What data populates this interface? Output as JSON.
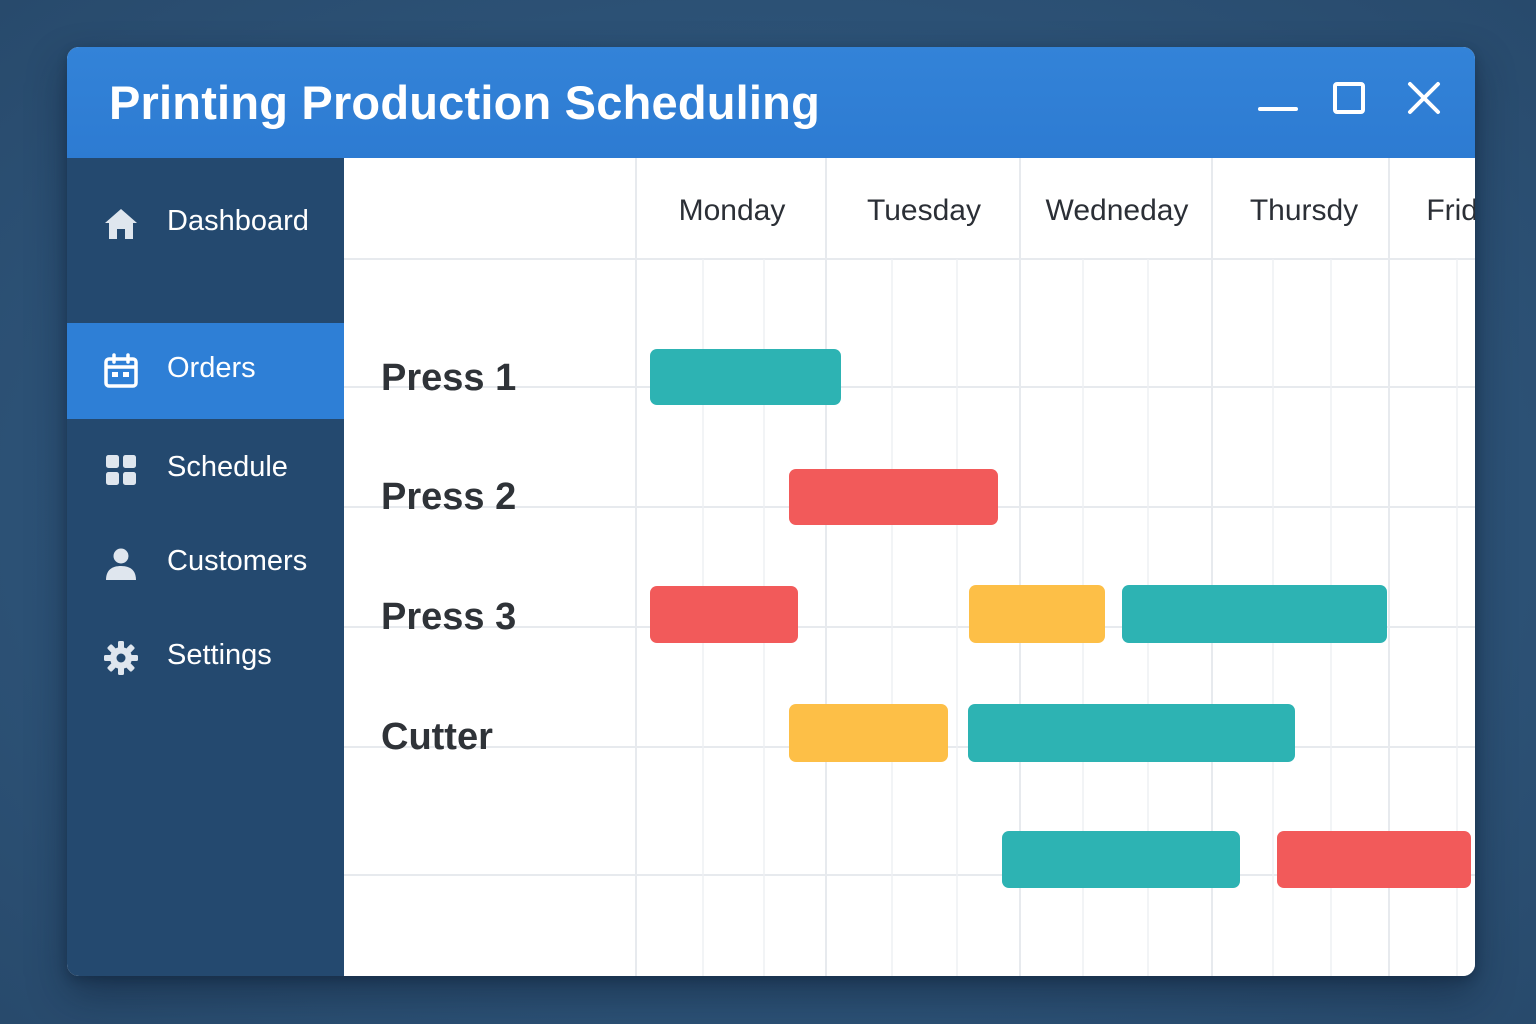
{
  "window": {
    "title": "Printing Production Scheduling",
    "controls": [
      "minimize-icon",
      "maximize-icon",
      "close-icon"
    ]
  },
  "colors": {
    "titlebar": "#2f7fd5",
    "sidebar": "#24496f",
    "active_nav": "#2e7fd6",
    "teal": "#2db3b3",
    "red": "#f25a5a",
    "yellow": "#fdbf47"
  },
  "sidebar": {
    "items": [
      {
        "label": "Dashboard",
        "icon": "home-icon",
        "active": false
      },
      {
        "label": "Orders",
        "icon": "calendar-icon",
        "active": true
      },
      {
        "label": "Schedule",
        "icon": "grid-icon",
        "active": false
      },
      {
        "label": "Customers",
        "icon": "user-icon",
        "active": false
      },
      {
        "label": "Settings",
        "icon": "gear-icon",
        "active": false
      }
    ]
  },
  "schedule": {
    "days": [
      "Monday",
      "Tuesday",
      "Wedneday",
      "Thursdy",
      "Friday"
    ],
    "rows": [
      {
        "label": "Press 1"
      },
      {
        "label": "Press 2"
      },
      {
        "label": "Press 3"
      },
      {
        "label": "Cutter"
      },
      {
        "label": ""
      }
    ]
  }
}
